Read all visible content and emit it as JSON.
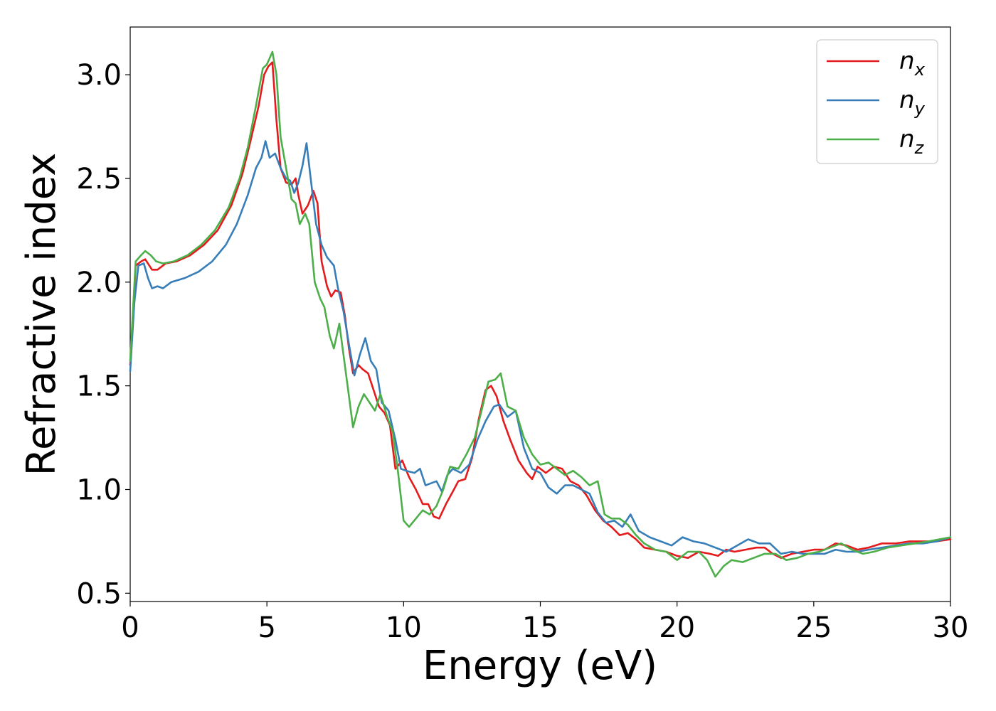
{
  "chart_data": {
    "type": "line",
    "xlabel": "Energy (eV)",
    "ylabel": "Refractive index",
    "xlim": [
      0,
      30
    ],
    "ylim": [
      0.46,
      3.23
    ],
    "xticks": [
      0,
      5,
      10,
      15,
      20,
      25,
      30
    ],
    "xtick_labels": [
      "0",
      "5",
      "10",
      "15",
      "20",
      "25",
      "30"
    ],
    "yticks": [
      0.5,
      1.0,
      1.5,
      2.0,
      2.5,
      3.0
    ],
    "ytick_labels": [
      "0.5",
      "1.0",
      "1.5",
      "2.0",
      "2.5",
      "3.0"
    ],
    "grid": false,
    "legend_position": "top-right",
    "series": [
      {
        "name": "n_x",
        "label_base": "n",
        "label_sub": "x",
        "color": "#e41a1c",
        "points": [
          [
            0,
            1.6
          ],
          [
            0.2,
            2.08
          ],
          [
            0.4,
            2.1
          ],
          [
            0.55,
            2.11
          ],
          [
            0.8,
            2.06
          ],
          [
            1.0,
            2.06
          ],
          [
            1.3,
            2.09
          ],
          [
            1.7,
            2.1
          ],
          [
            2.2,
            2.13
          ],
          [
            2.7,
            2.18
          ],
          [
            3.2,
            2.25
          ],
          [
            3.7,
            2.37
          ],
          [
            4.1,
            2.52
          ],
          [
            4.4,
            2.68
          ],
          [
            4.7,
            2.85
          ],
          [
            4.9,
            3.0
          ],
          [
            5.05,
            3.04
          ],
          [
            5.2,
            3.06
          ],
          [
            5.35,
            2.78
          ],
          [
            5.5,
            2.55
          ],
          [
            5.7,
            2.48
          ],
          [
            5.9,
            2.47
          ],
          [
            6.05,
            2.5
          ],
          [
            6.15,
            2.42
          ],
          [
            6.3,
            2.33
          ],
          [
            6.5,
            2.37
          ],
          [
            6.7,
            2.44
          ],
          [
            6.85,
            2.38
          ],
          [
            7.0,
            2.1
          ],
          [
            7.2,
            1.98
          ],
          [
            7.35,
            1.93
          ],
          [
            7.5,
            1.96
          ],
          [
            7.7,
            1.95
          ],
          [
            7.85,
            1.84
          ],
          [
            8.0,
            1.68
          ],
          [
            8.15,
            1.56
          ],
          [
            8.35,
            1.6
          ],
          [
            8.5,
            1.58
          ],
          [
            8.7,
            1.56
          ],
          [
            8.9,
            1.48
          ],
          [
            9.1,
            1.4
          ],
          [
            9.3,
            1.37
          ],
          [
            9.5,
            1.31
          ],
          [
            9.7,
            1.1
          ],
          [
            9.95,
            1.14
          ],
          [
            10.2,
            1.06
          ],
          [
            10.45,
            1.0
          ],
          [
            10.7,
            0.93
          ],
          [
            10.9,
            0.93
          ],
          [
            11.1,
            0.87
          ],
          [
            11.3,
            0.86
          ],
          [
            11.55,
            0.93
          ],
          [
            11.8,
            0.99
          ],
          [
            12.0,
            1.04
          ],
          [
            12.25,
            1.05
          ],
          [
            12.5,
            1.15
          ],
          [
            12.75,
            1.34
          ],
          [
            13.0,
            1.48
          ],
          [
            13.2,
            1.5
          ],
          [
            13.4,
            1.45
          ],
          [
            13.65,
            1.33
          ],
          [
            13.9,
            1.24
          ],
          [
            14.2,
            1.14
          ],
          [
            14.5,
            1.08
          ],
          [
            14.7,
            1.05
          ],
          [
            14.9,
            1.11
          ],
          [
            15.2,
            1.08
          ],
          [
            15.5,
            1.11
          ],
          [
            15.8,
            1.1
          ],
          [
            16.1,
            1.04
          ],
          [
            16.4,
            1.02
          ],
          [
            16.7,
            0.97
          ],
          [
            17.0,
            0.9
          ],
          [
            17.3,
            0.85
          ],
          [
            17.6,
            0.82
          ],
          [
            17.9,
            0.78
          ],
          [
            18.2,
            0.79
          ],
          [
            18.5,
            0.76
          ],
          [
            18.8,
            0.72
          ],
          [
            19.2,
            0.71
          ],
          [
            19.6,
            0.7
          ],
          [
            20.0,
            0.68
          ],
          [
            20.4,
            0.67
          ],
          [
            20.8,
            0.7
          ],
          [
            21.2,
            0.69
          ],
          [
            21.5,
            0.68
          ],
          [
            21.8,
            0.71
          ],
          [
            22.1,
            0.7
          ],
          [
            22.5,
            0.71
          ],
          [
            22.9,
            0.72
          ],
          [
            23.2,
            0.72
          ],
          [
            23.5,
            0.69
          ],
          [
            23.8,
            0.67
          ],
          [
            24.2,
            0.69
          ],
          [
            24.6,
            0.7
          ],
          [
            25.0,
            0.71
          ],
          [
            25.4,
            0.71
          ],
          [
            25.8,
            0.74
          ],
          [
            26.2,
            0.73
          ],
          [
            26.6,
            0.71
          ],
          [
            27.0,
            0.72
          ],
          [
            27.5,
            0.74
          ],
          [
            28.0,
            0.74
          ],
          [
            28.5,
            0.75
          ],
          [
            29.0,
            0.75
          ],
          [
            29.5,
            0.75
          ],
          [
            30.0,
            0.76
          ]
        ]
      },
      {
        "name": "n_y",
        "label_base": "n",
        "label_sub": "y",
        "color": "#377eb8",
        "points": [
          [
            0,
            1.57
          ],
          [
            0.15,
            1.9
          ],
          [
            0.3,
            2.08
          ],
          [
            0.5,
            2.09
          ],
          [
            0.65,
            2.02
          ],
          [
            0.8,
            1.97
          ],
          [
            1.0,
            1.98
          ],
          [
            1.2,
            1.97
          ],
          [
            1.5,
            2.0
          ],
          [
            2.0,
            2.02
          ],
          [
            2.5,
            2.05
          ],
          [
            3.0,
            2.1
          ],
          [
            3.5,
            2.18
          ],
          [
            3.9,
            2.28
          ],
          [
            4.3,
            2.42
          ],
          [
            4.6,
            2.55
          ],
          [
            4.8,
            2.6
          ],
          [
            4.95,
            2.68
          ],
          [
            5.1,
            2.6
          ],
          [
            5.3,
            2.62
          ],
          [
            5.5,
            2.55
          ],
          [
            5.7,
            2.5
          ],
          [
            5.85,
            2.49
          ],
          [
            6.0,
            2.43
          ],
          [
            6.15,
            2.48
          ],
          [
            6.3,
            2.56
          ],
          [
            6.45,
            2.67
          ],
          [
            6.6,
            2.5
          ],
          [
            6.8,
            2.28
          ],
          [
            7.0,
            2.18
          ],
          [
            7.2,
            2.12
          ],
          [
            7.45,
            2.08
          ],
          [
            7.6,
            1.97
          ],
          [
            7.8,
            1.86
          ],
          [
            8.0,
            1.7
          ],
          [
            8.2,
            1.55
          ],
          [
            8.4,
            1.65
          ],
          [
            8.6,
            1.73
          ],
          [
            8.8,
            1.62
          ],
          [
            9.0,
            1.58
          ],
          [
            9.2,
            1.42
          ],
          [
            9.45,
            1.38
          ],
          [
            9.7,
            1.24
          ],
          [
            9.9,
            1.1
          ],
          [
            10.1,
            1.09
          ],
          [
            10.4,
            1.08
          ],
          [
            10.6,
            1.1
          ],
          [
            10.8,
            1.02
          ],
          [
            11.0,
            1.03
          ],
          [
            11.2,
            1.04
          ],
          [
            11.4,
            0.99
          ],
          [
            11.6,
            1.07
          ],
          [
            11.8,
            1.1
          ],
          [
            12.1,
            1.08
          ],
          [
            12.4,
            1.12
          ],
          [
            12.7,
            1.24
          ],
          [
            13.0,
            1.33
          ],
          [
            13.3,
            1.4
          ],
          [
            13.5,
            1.41
          ],
          [
            13.8,
            1.35
          ],
          [
            14.1,
            1.38
          ],
          [
            14.4,
            1.2
          ],
          [
            14.7,
            1.1
          ],
          [
            15.0,
            1.08
          ],
          [
            15.3,
            1.01
          ],
          [
            15.6,
            0.98
          ],
          [
            15.9,
            1.02
          ],
          [
            16.2,
            1.02
          ],
          [
            16.5,
            1.0
          ],
          [
            16.8,
            0.98
          ],
          [
            17.1,
            0.89
          ],
          [
            17.4,
            0.84
          ],
          [
            17.7,
            0.85
          ],
          [
            18.0,
            0.82
          ],
          [
            18.3,
            0.88
          ],
          [
            18.6,
            0.8
          ],
          [
            19.0,
            0.77
          ],
          [
            19.4,
            0.75
          ],
          [
            19.8,
            0.73
          ],
          [
            20.2,
            0.77
          ],
          [
            20.6,
            0.75
          ],
          [
            21.0,
            0.74
          ],
          [
            21.4,
            0.72
          ],
          [
            21.8,
            0.7
          ],
          [
            22.2,
            0.73
          ],
          [
            22.6,
            0.76
          ],
          [
            23.0,
            0.74
          ],
          [
            23.4,
            0.74
          ],
          [
            23.8,
            0.69
          ],
          [
            24.2,
            0.7
          ],
          [
            24.6,
            0.69
          ],
          [
            25.0,
            0.69
          ],
          [
            25.4,
            0.69
          ],
          [
            25.8,
            0.71
          ],
          [
            26.2,
            0.7
          ],
          [
            26.6,
            0.7
          ],
          [
            27.0,
            0.71
          ],
          [
            27.5,
            0.72
          ],
          [
            28.0,
            0.73
          ],
          [
            28.5,
            0.74
          ],
          [
            29.0,
            0.74
          ],
          [
            29.5,
            0.75
          ],
          [
            30.0,
            0.77
          ]
        ]
      },
      {
        "name": "n_z",
        "label_base": "n",
        "label_sub": "z",
        "color": "#4daf4a",
        "points": [
          [
            0,
            1.62
          ],
          [
            0.2,
            2.1
          ],
          [
            0.4,
            2.13
          ],
          [
            0.55,
            2.15
          ],
          [
            0.75,
            2.13
          ],
          [
            0.95,
            2.1
          ],
          [
            1.2,
            2.09
          ],
          [
            1.6,
            2.1
          ],
          [
            2.1,
            2.13
          ],
          [
            2.6,
            2.18
          ],
          [
            3.1,
            2.25
          ],
          [
            3.6,
            2.36
          ],
          [
            4.0,
            2.5
          ],
          [
            4.3,
            2.65
          ],
          [
            4.6,
            2.85
          ],
          [
            4.85,
            3.03
          ],
          [
            5.0,
            3.05
          ],
          [
            5.2,
            3.11
          ],
          [
            5.35,
            3.0
          ],
          [
            5.5,
            2.7
          ],
          [
            5.7,
            2.55
          ],
          [
            5.9,
            2.4
          ],
          [
            6.05,
            2.38
          ],
          [
            6.2,
            2.28
          ],
          [
            6.4,
            2.33
          ],
          [
            6.55,
            2.28
          ],
          [
            6.75,
            2.0
          ],
          [
            6.95,
            1.92
          ],
          [
            7.1,
            1.88
          ],
          [
            7.3,
            1.74
          ],
          [
            7.45,
            1.68
          ],
          [
            7.65,
            1.8
          ],
          [
            7.85,
            1.6
          ],
          [
            8.0,
            1.45
          ],
          [
            8.15,
            1.3
          ],
          [
            8.35,
            1.4
          ],
          [
            8.55,
            1.46
          ],
          [
            8.75,
            1.42
          ],
          [
            8.95,
            1.38
          ],
          [
            9.15,
            1.46
          ],
          [
            9.4,
            1.35
          ],
          [
            9.6,
            1.28
          ],
          [
            9.8,
            1.08
          ],
          [
            10.0,
            0.85
          ],
          [
            10.2,
            0.82
          ],
          [
            10.45,
            0.86
          ],
          [
            10.7,
            0.9
          ],
          [
            10.95,
            0.88
          ],
          [
            11.2,
            0.92
          ],
          [
            11.45,
            1.0
          ],
          [
            11.7,
            1.11
          ],
          [
            12.0,
            1.1
          ],
          [
            12.3,
            1.17
          ],
          [
            12.6,
            1.25
          ],
          [
            12.85,
            1.38
          ],
          [
            13.1,
            1.52
          ],
          [
            13.35,
            1.53
          ],
          [
            13.55,
            1.56
          ],
          [
            13.8,
            1.4
          ],
          [
            14.1,
            1.38
          ],
          [
            14.4,
            1.25
          ],
          [
            14.7,
            1.17
          ],
          [
            15.0,
            1.12
          ],
          [
            15.3,
            1.13
          ],
          [
            15.6,
            1.1
          ],
          [
            15.9,
            1.07
          ],
          [
            16.2,
            1.09
          ],
          [
            16.5,
            1.06
          ],
          [
            16.8,
            1.02
          ],
          [
            17.1,
            1.04
          ],
          [
            17.35,
            0.88
          ],
          [
            17.6,
            0.86
          ],
          [
            17.9,
            0.86
          ],
          [
            18.2,
            0.83
          ],
          [
            18.5,
            0.78
          ],
          [
            18.8,
            0.74
          ],
          [
            19.2,
            0.71
          ],
          [
            19.6,
            0.7
          ],
          [
            20.0,
            0.66
          ],
          [
            20.4,
            0.7
          ],
          [
            20.8,
            0.7
          ],
          [
            21.1,
            0.66
          ],
          [
            21.4,
            0.58
          ],
          [
            21.7,
            0.63
          ],
          [
            22.0,
            0.66
          ],
          [
            22.4,
            0.65
          ],
          [
            22.8,
            0.67
          ],
          [
            23.2,
            0.69
          ],
          [
            23.6,
            0.69
          ],
          [
            24.0,
            0.66
          ],
          [
            24.4,
            0.67
          ],
          [
            24.8,
            0.69
          ],
          [
            25.2,
            0.7
          ],
          [
            25.6,
            0.72
          ],
          [
            26.0,
            0.74
          ],
          [
            26.4,
            0.71
          ],
          [
            26.8,
            0.69
          ],
          [
            27.2,
            0.7
          ],
          [
            27.7,
            0.72
          ],
          [
            28.2,
            0.73
          ],
          [
            28.7,
            0.74
          ],
          [
            29.2,
            0.75
          ],
          [
            29.6,
            0.76
          ],
          [
            30.0,
            0.77
          ]
        ]
      }
    ]
  }
}
